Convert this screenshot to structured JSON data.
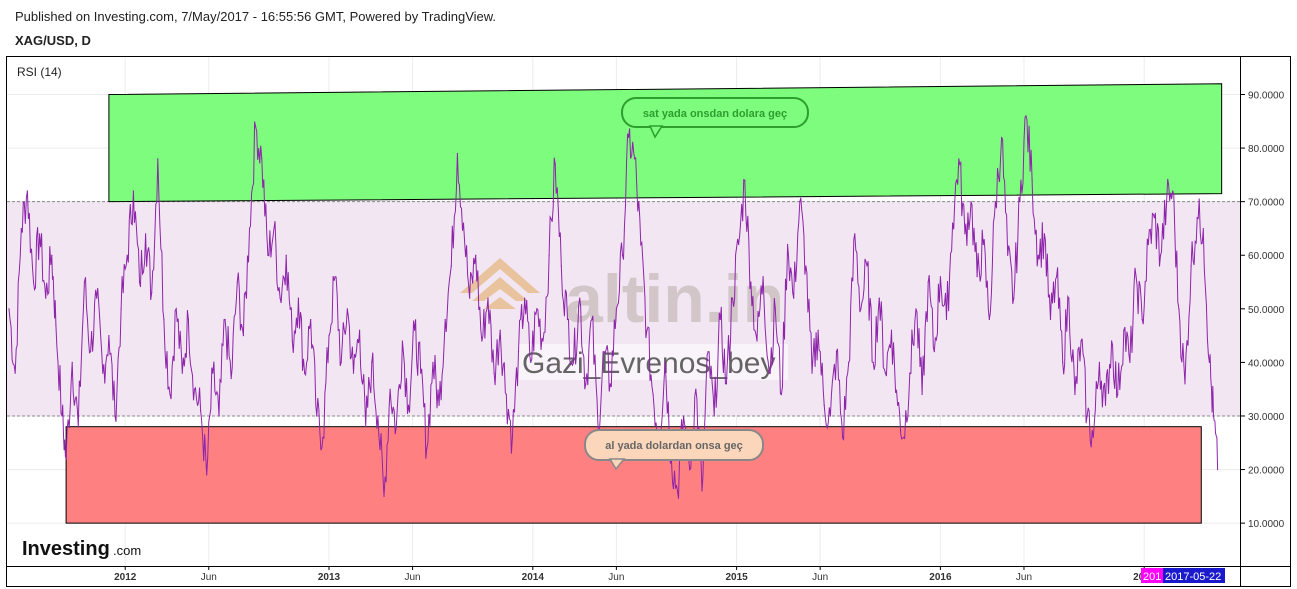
{
  "header": {
    "published": "Published on Investing.com, 7/May/2017 - 16:55:56 GMT, Powered by TradingView.",
    "symbol": "XAG/USD, D"
  },
  "indicator_label": "RSI (14)",
  "watermark": {
    "logo": "altin.in",
    "user": "Gazi_Evrenos_bey"
  },
  "brand": {
    "logo_bold": "Investing",
    "logo_suffix": ".com"
  },
  "annotations": {
    "overbought_callout": "sat yada onsdan dolara geç",
    "oversold_callout": "al yada dolardan onsa geç"
  },
  "badges": {
    "current_label": "201",
    "date_label": "2017-05-22"
  },
  "colors": {
    "rsi_line": "#8e24aa",
    "band_fill": "#f1e6f2",
    "green_zone": "#7dfc7d",
    "red_zone": "#ff8080",
    "green_callout": "#2e9e2e",
    "red_callout_fill": "#fbd6bb",
    "badge_magenta": "#ff00ff",
    "badge_blue": "#1a1acc"
  },
  "chart_data": {
    "type": "line",
    "title": "RSI (14)",
    "y_ticks": [
      "90.0000",
      "80.0000",
      "70.0000",
      "60.0000",
      "50.0000",
      "40.0000",
      "30.0000",
      "20.0000",
      "10.0000"
    ],
    "ylim": [
      2,
      97
    ],
    "x_ticks": [
      {
        "label": "2012",
        "bold": true,
        "t": 2012.0
      },
      {
        "label": "Jun",
        "bold": false,
        "t": 2012.41
      },
      {
        "label": "2013",
        "bold": true,
        "t": 2013.0
      },
      {
        "label": "Jun",
        "bold": false,
        "t": 2013.41
      },
      {
        "label": "2014",
        "bold": true,
        "t": 2014.0
      },
      {
        "label": "Jun",
        "bold": false,
        "t": 2014.41
      },
      {
        "label": "2015",
        "bold": true,
        "t": 2015.0
      },
      {
        "label": "Jun",
        "bold": false,
        "t": 2015.41
      },
      {
        "label": "2016",
        "bold": true,
        "t": 2016.0
      },
      {
        "label": "Jun",
        "bold": false,
        "t": 2016.41
      },
      {
        "label": "2017",
        "bold": true,
        "t": 2017.0
      }
    ],
    "xlim": [
      2011.42,
      2017.47
    ],
    "levels": {
      "upper": 70,
      "lower": 30
    },
    "zones": {
      "sell": {
        "t0": 2011.92,
        "t1": 2017.38,
        "top_start": 90,
        "top_end": 92,
        "bottom_start": 70,
        "bottom_end": 71.5
      },
      "buy": {
        "t0": 2011.71,
        "t1": 2017.28,
        "top": 28,
        "bottom": 10
      }
    },
    "series": [
      {
        "values": [
          [
            2011.43,
            50
          ],
          [
            2011.46,
            38
          ],
          [
            2011.49,
            65
          ],
          [
            2011.52,
            72
          ],
          [
            2011.55,
            55
          ],
          [
            2011.58,
            64
          ],
          [
            2011.61,
            52
          ],
          [
            2011.64,
            60
          ],
          [
            2011.66,
            47
          ],
          [
            2011.69,
            30
          ],
          [
            2011.71,
            22
          ],
          [
            2011.74,
            40
          ],
          [
            2011.77,
            28
          ],
          [
            2011.8,
            55
          ],
          [
            2011.83,
            42
          ],
          [
            2011.86,
            52
          ],
          [
            2011.89,
            38
          ],
          [
            2011.92,
            45
          ],
          [
            2011.95,
            30
          ],
          [
            2011.98,
            50
          ],
          [
            2012.01,
            60
          ],
          [
            2012.04,
            72
          ],
          [
            2012.07,
            55
          ],
          [
            2012.1,
            64
          ],
          [
            2012.13,
            53
          ],
          [
            2012.16,
            78
          ],
          [
            2012.19,
            48
          ],
          [
            2012.22,
            34
          ],
          [
            2012.25,
            50
          ],
          [
            2012.28,
            38
          ],
          [
            2012.31,
            48
          ],
          [
            2012.34,
            35
          ],
          [
            2012.37,
            31
          ],
          [
            2012.4,
            19
          ],
          [
            2012.43,
            38
          ],
          [
            2012.46,
            30
          ],
          [
            2012.49,
            48
          ],
          [
            2012.52,
            37
          ],
          [
            2012.55,
            55
          ],
          [
            2012.58,
            45
          ],
          [
            2012.61,
            65
          ],
          [
            2012.64,
            84
          ],
          [
            2012.67,
            78
          ],
          [
            2012.7,
            60
          ],
          [
            2012.73,
            65
          ],
          [
            2012.76,
            52
          ],
          [
            2012.79,
            60
          ],
          [
            2012.82,
            44
          ],
          [
            2012.85,
            52
          ],
          [
            2012.88,
            38
          ],
          [
            2012.91,
            48
          ],
          [
            2012.94,
            30
          ],
          [
            2012.97,
            26
          ],
          [
            2013.0,
            45
          ],
          [
            2013.03,
            56
          ],
          [
            2013.06,
            40
          ],
          [
            2013.09,
            50
          ],
          [
            2013.12,
            38
          ],
          [
            2013.15,
            46
          ],
          [
            2013.18,
            28
          ],
          [
            2013.21,
            40
          ],
          [
            2013.24,
            30
          ],
          [
            2013.27,
            15
          ],
          [
            2013.3,
            35
          ],
          [
            2013.33,
            28
          ],
          [
            2013.36,
            44
          ],
          [
            2013.39,
            32
          ],
          [
            2013.42,
            46
          ],
          [
            2013.45,
            38
          ],
          [
            2013.48,
            24
          ],
          [
            2013.51,
            40
          ],
          [
            2013.54,
            32
          ],
          [
            2013.57,
            48
          ],
          [
            2013.6,
            58
          ],
          [
            2013.63,
            79
          ],
          [
            2013.66,
            66
          ],
          [
            2013.69,
            52
          ],
          [
            2013.72,
            60
          ],
          [
            2013.75,
            44
          ],
          [
            2013.78,
            52
          ],
          [
            2013.81,
            38
          ],
          [
            2013.84,
            46
          ],
          [
            2013.87,
            34
          ],
          [
            2013.9,
            26
          ],
          [
            2013.93,
            42
          ],
          [
            2013.96,
            52
          ],
          [
            2013.99,
            40
          ],
          [
            2014.02,
            50
          ],
          [
            2014.05,
            44
          ],
          [
            2014.08,
            60
          ],
          [
            2014.11,
            77
          ],
          [
            2014.14,
            58
          ],
          [
            2014.17,
            48
          ],
          [
            2014.2,
            40
          ],
          [
            2014.23,
            52
          ],
          [
            2014.26,
            36
          ],
          [
            2014.29,
            48
          ],
          [
            2014.32,
            28
          ],
          [
            2014.35,
            42
          ],
          [
            2014.38,
            36
          ],
          [
            2014.41,
            50
          ],
          [
            2014.44,
            60
          ],
          [
            2014.47,
            82
          ],
          [
            2014.5,
            78
          ],
          [
            2014.53,
            62
          ],
          [
            2014.56,
            46
          ],
          [
            2014.59,
            34
          ],
          [
            2014.62,
            26
          ],
          [
            2014.65,
            40
          ],
          [
            2014.68,
            22
          ],
          [
            2014.71,
            16
          ],
          [
            2014.74,
            30
          ],
          [
            2014.77,
            20
          ],
          [
            2014.8,
            35
          ],
          [
            2014.83,
            16
          ],
          [
            2014.86,
            42
          ],
          [
            2014.89,
            30
          ],
          [
            2014.92,
            48
          ],
          [
            2014.95,
            36
          ],
          [
            2014.98,
            52
          ],
          [
            2015.01,
            62
          ],
          [
            2015.04,
            74
          ],
          [
            2015.07,
            55
          ],
          [
            2015.1,
            44
          ],
          [
            2015.13,
            56
          ],
          [
            2015.16,
            38
          ],
          [
            2015.19,
            50
          ],
          [
            2015.22,
            34
          ],
          [
            2015.25,
            62
          ],
          [
            2015.28,
            52
          ],
          [
            2015.31,
            70
          ],
          [
            2015.34,
            58
          ],
          [
            2015.37,
            38
          ],
          [
            2015.4,
            46
          ],
          [
            2015.43,
            32
          ],
          [
            2015.46,
            30
          ],
          [
            2015.49,
            42
          ],
          [
            2015.52,
            26
          ],
          [
            2015.55,
            40
          ],
          [
            2015.58,
            64
          ],
          [
            2015.61,
            50
          ],
          [
            2015.64,
            58
          ],
          [
            2015.67,
            40
          ],
          [
            2015.7,
            52
          ],
          [
            2015.73,
            38
          ],
          [
            2015.76,
            46
          ],
          [
            2015.79,
            32
          ],
          [
            2015.82,
            26
          ],
          [
            2015.85,
            38
          ],
          [
            2015.88,
            50
          ],
          [
            2015.91,
            34
          ],
          [
            2015.94,
            55
          ],
          [
            2015.97,
            42
          ],
          [
            2016.0,
            56
          ],
          [
            2016.03,
            48
          ],
          [
            2016.06,
            66
          ],
          [
            2016.09,
            78
          ],
          [
            2016.12,
            64
          ],
          [
            2016.15,
            70
          ],
          [
            2016.18,
            56
          ],
          [
            2016.21,
            62
          ],
          [
            2016.24,
            48
          ],
          [
            2016.27,
            70
          ],
          [
            2016.3,
            82
          ],
          [
            2016.33,
            60
          ],
          [
            2016.36,
            52
          ],
          [
            2016.39,
            70
          ],
          [
            2016.42,
            86
          ],
          [
            2016.45,
            74
          ],
          [
            2016.48,
            60
          ],
          [
            2016.51,
            64
          ],
          [
            2016.54,
            48
          ],
          [
            2016.57,
            56
          ],
          [
            2016.6,
            40
          ],
          [
            2016.63,
            52
          ],
          [
            2016.66,
            34
          ],
          [
            2016.69,
            44
          ],
          [
            2016.72,
            30
          ],
          [
            2016.75,
            26
          ],
          [
            2016.78,
            40
          ],
          [
            2016.81,
            32
          ],
          [
            2016.84,
            44
          ],
          [
            2016.87,
            34
          ],
          [
            2016.9,
            46
          ],
          [
            2016.93,
            40
          ],
          [
            2016.96,
            56
          ],
          [
            2016.99,
            48
          ],
          [
            2017.02,
            62
          ],
          [
            2017.05,
            67
          ],
          [
            2017.08,
            60
          ],
          [
            2017.11,
            70
          ],
          [
            2017.14,
            72
          ],
          [
            2017.17,
            50
          ],
          [
            2017.2,
            36
          ],
          [
            2017.23,
            58
          ],
          [
            2017.26,
            67
          ],
          [
            2017.29,
            65
          ],
          [
            2017.32,
            40
          ],
          [
            2017.34,
            30
          ],
          [
            2017.36,
            20
          ]
        ]
      }
    ]
  }
}
